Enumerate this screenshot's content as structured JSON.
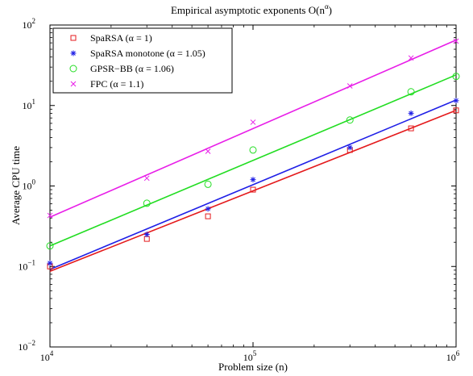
{
  "chart_data": {
    "type": "scatter",
    "title": "Empirical asymptotic exponents O(n",
    "title_sup": "α",
    "title_end": ")",
    "xlabel": "Problem size (n)",
    "ylabel": "Average CPU time",
    "xscale": "log",
    "yscale": "log",
    "xlim": [
      10000,
      1000000
    ],
    "ylim": [
      0.01,
      100
    ],
    "grid": false,
    "legend_position": "top-left",
    "x_ticks": [
      {
        "base": "10",
        "exp": "4",
        "value": 10000
      },
      {
        "base": "10",
        "exp": "5",
        "value": 100000
      },
      {
        "base": "10",
        "exp": "6",
        "value": 1000000
      }
    ],
    "y_ticks": [
      {
        "base": "10",
        "exp": "−2",
        "value": 0.01
      },
      {
        "base": "10",
        "exp": "−1",
        "value": 0.1
      },
      {
        "base": "10",
        "exp": "0",
        "value": 1
      },
      {
        "base": "10",
        "exp": "1",
        "value": 10
      },
      {
        "base": "10",
        "exp": "2",
        "value": 100
      }
    ],
    "series": [
      {
        "name": "SpaRSA (α = 1)",
        "color": "#e41a1c",
        "marker": "square",
        "x": [
          10000,
          30000,
          60000,
          100000,
          300000,
          600000,
          1000000
        ],
        "y": [
          0.1,
          0.22,
          0.42,
          0.9,
          2.8,
          5.2,
          8.7
        ],
        "fit": {
          "x": [
            10000,
            1000000
          ],
          "y": [
            0.087,
            8.7
          ]
        }
      },
      {
        "name": "SpaRSA monotone (α = 1.05)",
        "color": "#1f1fe6",
        "marker": "star",
        "x": [
          10000,
          30000,
          60000,
          100000,
          300000,
          600000,
          1000000
        ],
        "y": [
          0.11,
          0.25,
          0.52,
          1.2,
          3.0,
          8.0,
          11.5
        ],
        "fit": {
          "x": [
            10000,
            1000000
          ],
          "y": [
            0.092,
            11.7
          ]
        }
      },
      {
        "name": "GPSR−BB (α = 1.06)",
        "color": "#22dd22",
        "marker": "circle",
        "x": [
          10000,
          30000,
          60000,
          100000,
          300000,
          600000,
          1000000
        ],
        "y": [
          0.18,
          0.61,
          1.05,
          2.8,
          6.6,
          14.8,
          23.0
        ],
        "fit": {
          "x": [
            10000,
            1000000
          ],
          "y": [
            0.18,
            24.0
          ]
        }
      },
      {
        "name": "FPC (α = 1.1)",
        "color": "#e81ee8",
        "marker": "x",
        "x": [
          10000,
          30000,
          60000,
          100000,
          300000,
          600000,
          1000000
        ],
        "y": [
          0.43,
          1.25,
          2.7,
          6.2,
          17.5,
          39.0,
          63.0
        ],
        "fit": {
          "x": [
            10000,
            1000000
          ],
          "y": [
            0.41,
            65.0
          ]
        }
      }
    ]
  }
}
